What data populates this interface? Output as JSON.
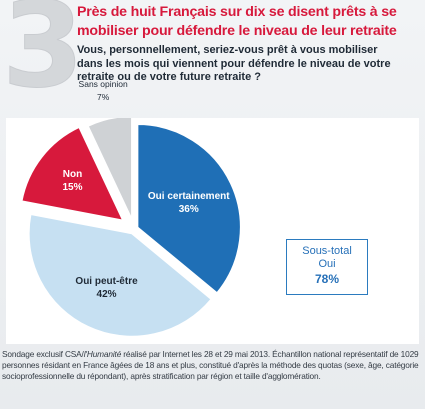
{
  "header": {
    "number": "3",
    "headline": "Près de huit Français sur dix se disent prêts à se mobiliser pour défendre le niveau de leur retraite",
    "question": "Vous, personnellement, seriez-vous prêt à vous mobiliser dans les mois qui viennent pour défendre le niveau de votre retraite ou de votre future retraite ?"
  },
  "chart_data": {
    "type": "pie",
    "title": "",
    "slices": [
      {
        "label": "Oui certainement",
        "value": 36,
        "display": "36%",
        "color": "#1f6fb6"
      },
      {
        "label": "Oui peut-être",
        "value": 42,
        "display": "42%",
        "color": "#c6e0f2"
      },
      {
        "label": "Non",
        "value": 15,
        "display": "15%",
        "color": "#d7193c"
      },
      {
        "label": "Sans opinion",
        "value": 7,
        "display": "7%",
        "color": "#cfd2d5"
      }
    ]
  },
  "subtotal": {
    "label_line1": "Sous-total",
    "label_line2": "Oui",
    "value": "78%"
  },
  "footnote": {
    "prefix": "Sondage exclusif CSA/",
    "publication": "l'Humanité",
    "text": " réalisé par Internet les 28 et 29 mai 2013. Échantillon national représentatif de 1029 personnes résidant en France âgées de 18 ans et plus, constitué d'après la méthode des quotas (sexe, âge, catégorie socioprofessionnelle du répondant), après stratification par région et taille d'agglomération."
  }
}
